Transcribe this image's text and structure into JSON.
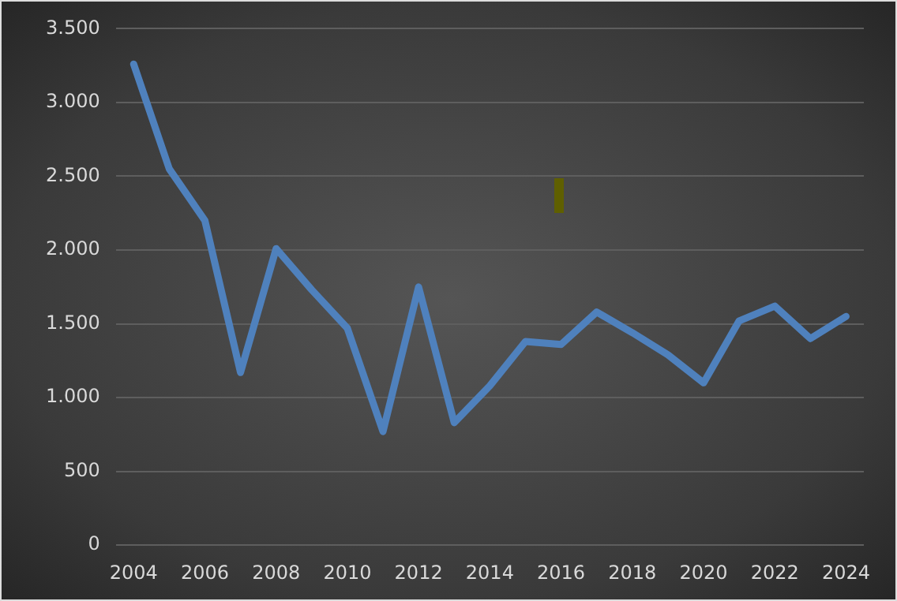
{
  "chart_data": {
    "type": "line",
    "categories": [
      "2004",
      null,
      "2006",
      null,
      "2008",
      null,
      "2010",
      null,
      "2012",
      null,
      "2014",
      null,
      "2016",
      null,
      "2018",
      null,
      "2020",
      null,
      "2022",
      null,
      "2024"
    ],
    "series": [
      {
        "color": "#4f81bd",
        "values": [
          3260,
          2550,
          2200,
          1170,
          2010,
          1730,
          1470,
          770,
          1750,
          830,
          1080,
          1380,
          1360,
          1580,
          1440,
          1290,
          1100,
          1520,
          1620,
          1400,
          1550
        ]
      }
    ],
    "ylim": [
      0,
      3500
    ],
    "yticks": [
      0,
      {
        "value": 500,
        "label": "500"
      },
      {
        "value": 1000,
        "label": "1.000"
      },
      {
        "value": 1500,
        "label": "1.500"
      },
      {
        "value": 2000,
        "label": "2.000"
      },
      {
        "value": 2500,
        "label": "2.500"
      },
      {
        "value": 3000,
        "label": "3.000"
      },
      {
        "value": 3500,
        "label": "3.500"
      }
    ],
    "grid": "y",
    "legend": false,
    "marker": "none",
    "line_style": "solid"
  }
}
